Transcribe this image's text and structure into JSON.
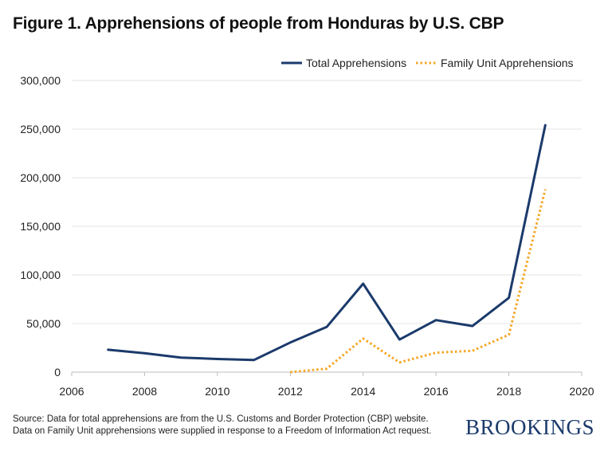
{
  "title": "Figure 1. Apprehensions of people from Honduras by U.S. CBP",
  "source_line1": "Source: Data for total apprehensions are from the U.S. Customs and Border Protection (CBP) website.",
  "source_line2": "Data on Family Unit apprehensions were supplied in response to a Freedom of Information Act request.",
  "logo": "BROOKINGS",
  "chart_data": {
    "type": "line",
    "title": "Figure 1. Apprehensions of people from Honduras by U.S. CBP",
    "xlabel": "",
    "ylabel": "",
    "xlim": [
      2006,
      2020
    ],
    "ylim": [
      0,
      300000
    ],
    "x_ticks": [
      "2006",
      "2008",
      "2010",
      "2012",
      "2014",
      "2016",
      "2018",
      "2020"
    ],
    "y_ticks": [
      "0",
      "50,000",
      "100,000",
      "150,000",
      "200,000",
      "250,000",
      "300,000"
    ],
    "grid": "horizontal",
    "legend_position": "top-right",
    "series": [
      {
        "name": "Total Apprehensions",
        "style": "solid",
        "color": "#1b3a6b",
        "x": [
          2007,
          2008,
          2009,
          2010,
          2011,
          2012,
          2013,
          2014,
          2015,
          2016,
          2017,
          2018,
          2019
        ],
        "values": [
          23000,
          19500,
          15000,
          13500,
          12500,
          30500,
          46500,
          91000,
          33500,
          53500,
          47500,
          76500,
          254000
        ]
      },
      {
        "name": "Family Unit Apprehensions",
        "style": "dotted",
        "color": "#f5a623",
        "x": [
          2012,
          2013,
          2014,
          2015,
          2016,
          2017,
          2018,
          2019
        ],
        "values": [
          0,
          3500,
          34500,
          10000,
          20000,
          22000,
          38500,
          188000
        ]
      }
    ]
  }
}
